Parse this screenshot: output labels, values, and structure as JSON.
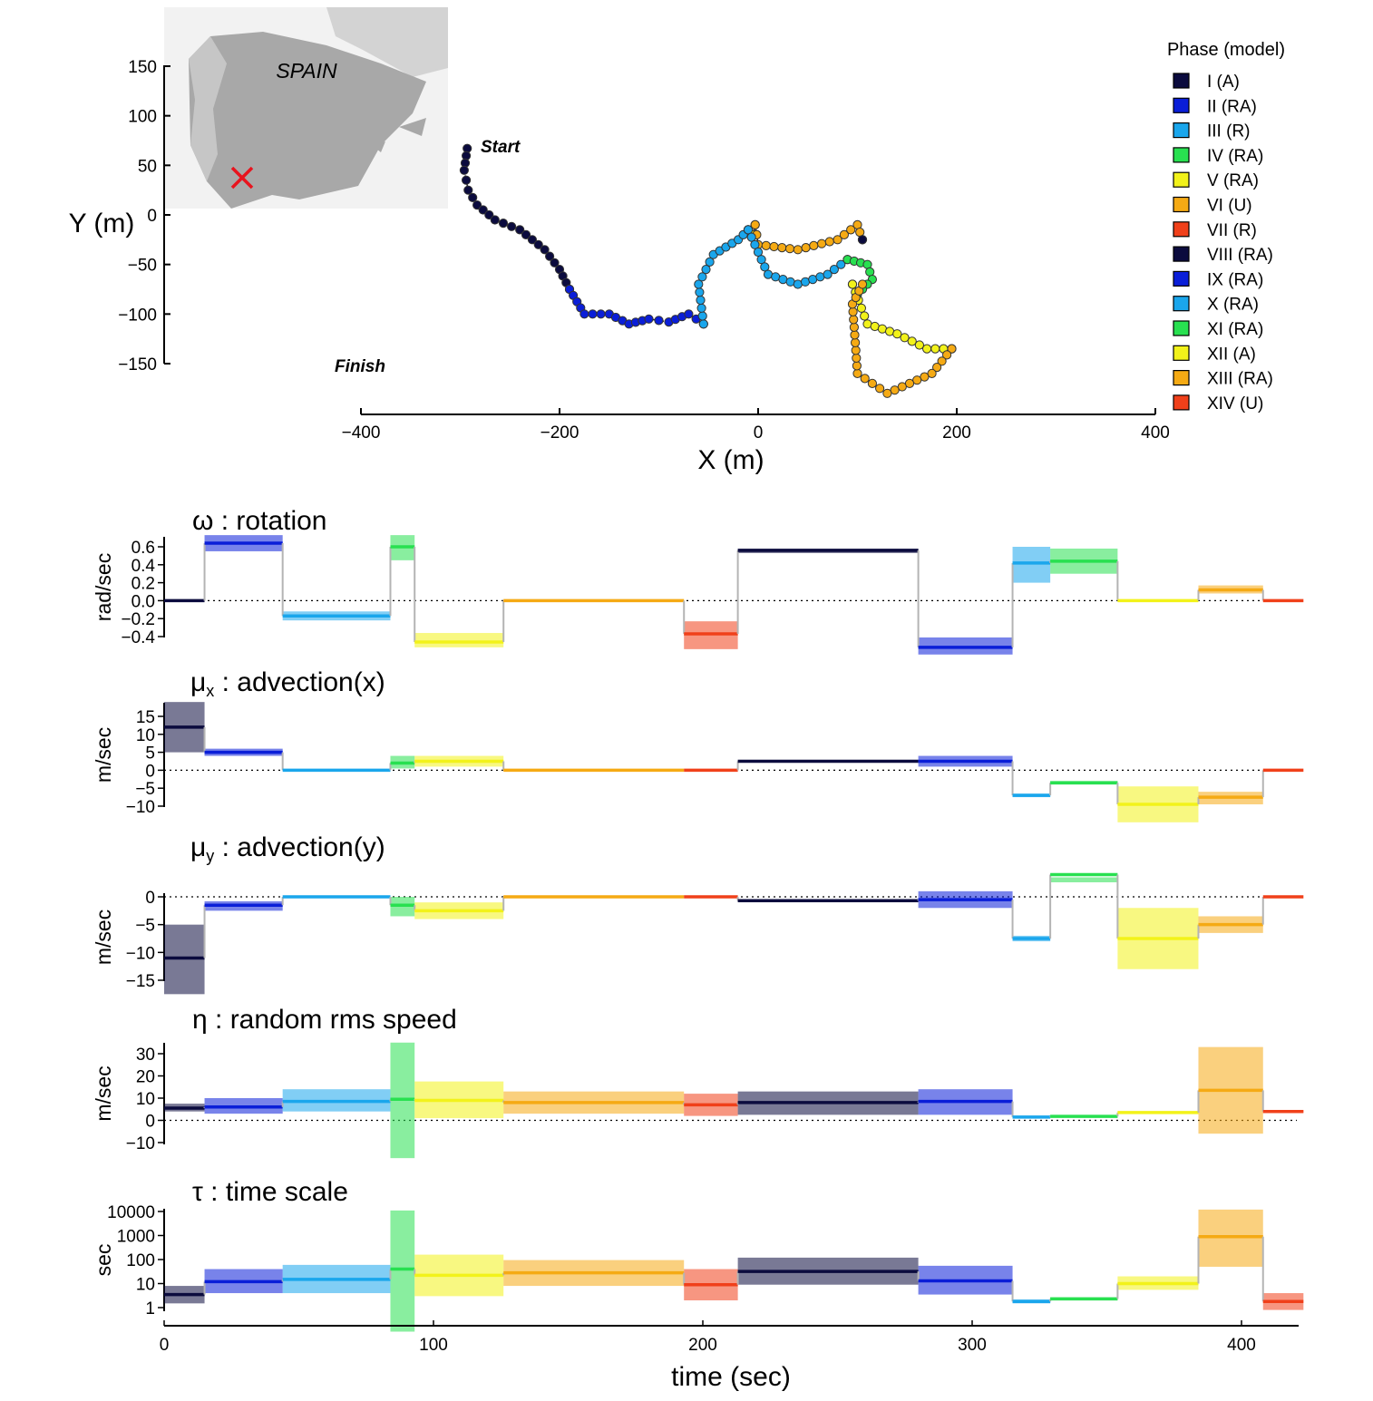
{
  "colors": {
    "I": "#0b0b3e",
    "II": "#0a1ed8",
    "III": "#1aa6ec",
    "IV": "#28e050",
    "V": "#f2f21a",
    "VI": "#f5aa14",
    "VII": "#f0401a",
    "VIII": "#0b0b3e",
    "IX": "#0a1ed8",
    "X": "#1aa6ec",
    "XI": "#28e050",
    "XII": "#f2f21a",
    "XIII": "#f5aa14",
    "XIV": "#f0401a"
  },
  "chart_data": [
    {
      "type": "scatter",
      "xlabel": "X (m)",
      "ylabel": "Y (m)",
      "xlim": [
        -400,
        400
      ],
      "ylim": [
        -150,
        150
      ],
      "xticks": [
        "−400",
        "−200",
        "0",
        "200",
        "400"
      ],
      "yticks": [
        "150",
        "100",
        "50",
        "0",
        "−50",
        "−100",
        "−150"
      ],
      "annotations": [
        "Start",
        "Finish"
      ],
      "inset_label": "SPAIN",
      "legend_title": "Phase (model)",
      "legend": [
        "I (A)",
        "II (RA)",
        "III (R)",
        "IV (RA)",
        "V (RA)",
        "VI (U)",
        "VII (R)",
        "VIII (RA)",
        "IX (RA)",
        "X (RA)",
        "XI (RA)",
        "XII (A)",
        "XIII (RA)",
        "XIV (U)"
      ],
      "legend_keys": [
        "I",
        "II",
        "III",
        "IV",
        "V",
        "VI",
        "VII",
        "VIII",
        "IX",
        "X",
        "XI",
        "XII",
        "XIII",
        "XIV"
      ],
      "segments": [
        {
          "phase": "I",
          "points": [
            [
              -293,
              67
            ],
            [
              -296,
              45
            ],
            [
              -292,
              25
            ],
            [
              -283,
              10
            ],
            [
              -265,
              -5
            ],
            [
              -240,
              -15
            ],
            [
              -215,
              -35
            ],
            [
              -200,
              -55
            ],
            [
              -190,
              -75
            ]
          ]
        },
        {
          "phase": "II",
          "points": [
            [
              -190,
              -75
            ],
            [
              -175,
              -100
            ],
            [
              -150,
              -100
            ],
            [
              -130,
              -110
            ],
            [
              -110,
              -105
            ],
            [
              -90,
              -108
            ],
            [
              -70,
              -100
            ],
            [
              -55,
              -110
            ]
          ]
        },
        {
          "phase": "III",
          "points": [
            [
              -55,
              -110
            ],
            [
              -60,
              -70
            ],
            [
              -45,
              -40
            ],
            [
              -20,
              -25
            ],
            [
              -10,
              -15
            ]
          ]
        },
        {
          "phase": "IV",
          "points": [
            [
              -10,
              -15
            ],
            [
              -5,
              -20
            ]
          ]
        },
        {
          "phase": "V",
          "points": [
            [
              -5,
              -20
            ],
            [
              -3,
              -10
            ]
          ]
        },
        {
          "phase": "VI",
          "points": [
            [
              -3,
              -10
            ],
            [
              0,
              -30
            ],
            [
              40,
              -35
            ],
            [
              80,
              -25
            ],
            [
              100,
              -10
            ],
            [
              105,
              -25
            ]
          ]
        },
        {
          "phase": "VII",
          "points": [
            [
              105,
              -25
            ]
          ]
        },
        {
          "phase": "VIII",
          "points": [
            [
              105,
              -25
            ]
          ]
        },
        {
          "phase": "X",
          "points": [
            [
              -10,
              -15
            ],
            [
              10,
              -60
            ],
            [
              40,
              -70
            ],
            [
              70,
              -60
            ],
            [
              90,
              -45
            ]
          ]
        },
        {
          "phase": "XI",
          "points": [
            [
              90,
              -45
            ],
            [
              110,
              -50
            ],
            [
              115,
              -65
            ],
            [
              100,
              -80
            ],
            [
              95,
              -70
            ]
          ]
        },
        {
          "phase": "XII",
          "points": [
            [
              95,
              -70
            ],
            [
              110,
              -110
            ],
            [
              140,
              -120
            ],
            [
              170,
              -135
            ],
            [
              195,
              -135
            ]
          ]
        },
        {
          "phase": "XIII",
          "points": [
            [
              195,
              -135
            ],
            [
              175,
              -160
            ],
            [
              130,
              -180
            ],
            [
              100,
              -160
            ],
            [
              95,
              -90
            ],
            [
              105,
              -70
            ]
          ]
        }
      ]
    },
    {
      "type": "step",
      "title": "ω :  rotation",
      "ylabel": "rad/sec",
      "ylim": [
        -0.4,
        0.6
      ],
      "yticks": [
        "0.6",
        "0.4",
        "0.2",
        "0.0",
        "−0.2",
        "−0.4"
      ],
      "segments": [
        {
          "phase": "I",
          "t0": 0,
          "t1": 15,
          "value": 0.0,
          "lo": 0.0,
          "hi": 0.0
        },
        {
          "phase": "II",
          "t0": 15,
          "t1": 44,
          "value": 0.64,
          "lo": 0.55,
          "hi": 0.73
        },
        {
          "phase": "III",
          "t0": 44,
          "t1": 84,
          "value": -0.17,
          "lo": -0.22,
          "hi": -0.12
        },
        {
          "phase": "IV",
          "t0": 84,
          "t1": 93,
          "value": 0.6,
          "lo": 0.45,
          "hi": 0.73
        },
        {
          "phase": "V",
          "t0": 93,
          "t1": 126,
          "value": -0.46,
          "lo": -0.52,
          "hi": -0.36
        },
        {
          "phase": "VI",
          "t0": 126,
          "t1": 193,
          "value": 0.0,
          "lo": 0.0,
          "hi": 0.0
        },
        {
          "phase": "VII",
          "t0": 193,
          "t1": 213,
          "value": -0.37,
          "lo": -0.54,
          "hi": -0.23
        },
        {
          "phase": "VIII",
          "t0": 213,
          "t1": 280,
          "value": 0.56,
          "lo": 0.53,
          "hi": 0.58
        },
        {
          "phase": "IX",
          "t0": 280,
          "t1": 315,
          "value": -0.52,
          "lo": -0.6,
          "hi": -0.41
        },
        {
          "phase": "X",
          "t0": 315,
          "t1": 329,
          "value": 0.42,
          "lo": 0.2,
          "hi": 0.6
        },
        {
          "phase": "XI",
          "t0": 329,
          "t1": 354,
          "value": 0.44,
          "lo": 0.3,
          "hi": 0.58
        },
        {
          "phase": "XII",
          "t0": 354,
          "t1": 384,
          "value": 0.0,
          "lo": 0.0,
          "hi": 0.0
        },
        {
          "phase": "XIII",
          "t0": 384,
          "t1": 408,
          "value": 0.12,
          "lo": 0.08,
          "hi": 0.17
        },
        {
          "phase": "XIV",
          "t0": 408,
          "t1": 423,
          "value": 0.0,
          "lo": 0.0,
          "hi": 0.0
        }
      ]
    },
    {
      "type": "step",
      "title_main": "μ",
      "title_sub": "x",
      "title_rest": " : advection(x)",
      "ylabel": "m/sec",
      "ylim": [
        -10,
        15
      ],
      "yticks": [
        "15",
        "10",
        "5",
        "0",
        "−5",
        "−10"
      ],
      "segments": [
        {
          "phase": "I",
          "t0": 0,
          "t1": 15,
          "value": 12,
          "lo": 5,
          "hi": 19
        },
        {
          "phase": "II",
          "t0": 15,
          "t1": 44,
          "value": 5,
          "lo": 4,
          "hi": 6
        },
        {
          "phase": "III",
          "t0": 44,
          "t1": 84,
          "value": 0,
          "lo": 0,
          "hi": 0
        },
        {
          "phase": "IV",
          "t0": 84,
          "t1": 93,
          "value": 2,
          "lo": 0.5,
          "hi": 4
        },
        {
          "phase": "V",
          "t0": 93,
          "t1": 126,
          "value": 2.5,
          "lo": 1,
          "hi": 4
        },
        {
          "phase": "VI",
          "t0": 126,
          "t1": 193,
          "value": 0,
          "lo": 0,
          "hi": 0
        },
        {
          "phase": "VII",
          "t0": 193,
          "t1": 213,
          "value": 0,
          "lo": 0,
          "hi": 0
        },
        {
          "phase": "VIII",
          "t0": 213,
          "t1": 280,
          "value": 2.5,
          "lo": 2.3,
          "hi": 2.7
        },
        {
          "phase": "IX",
          "t0": 280,
          "t1": 315,
          "value": 2.5,
          "lo": 1,
          "hi": 4
        },
        {
          "phase": "X",
          "t0": 315,
          "t1": 329,
          "value": -7,
          "lo": -7.5,
          "hi": -6.5
        },
        {
          "phase": "XI",
          "t0": 329,
          "t1": 354,
          "value": -3.5,
          "lo": -4,
          "hi": -3
        },
        {
          "phase": "XII",
          "t0": 354,
          "t1": 384,
          "value": -9.5,
          "lo": -14.5,
          "hi": -4.5
        },
        {
          "phase": "XIII",
          "t0": 384,
          "t1": 408,
          "value": -7.5,
          "lo": -9.5,
          "hi": -6
        },
        {
          "phase": "XIV",
          "t0": 408,
          "t1": 423,
          "value": 0,
          "lo": 0,
          "hi": 0
        }
      ]
    },
    {
      "type": "step",
      "title_main": "μ",
      "title_sub": "y",
      "title_rest": " : advection(y)",
      "ylabel": "m/sec",
      "ylim": [
        -15,
        0
      ],
      "yticks": [
        "0",
        "−5",
        "−10",
        "−15"
      ],
      "segments": [
        {
          "phase": "I",
          "t0": 0,
          "t1": 15,
          "value": -11,
          "lo": -17.5,
          "hi": -5
        },
        {
          "phase": "II",
          "t0": 15,
          "t1": 44,
          "value": -1.5,
          "lo": -2.5,
          "hi": -0.8
        },
        {
          "phase": "III",
          "t0": 44,
          "t1": 84,
          "value": 0,
          "lo": 0,
          "hi": 0
        },
        {
          "phase": "IV",
          "t0": 84,
          "t1": 93,
          "value": -1.5,
          "lo": -3.5,
          "hi": 0
        },
        {
          "phase": "V",
          "t0": 93,
          "t1": 126,
          "value": -2.5,
          "lo": -4,
          "hi": -1
        },
        {
          "phase": "VI",
          "t0": 126,
          "t1": 193,
          "value": 0,
          "lo": 0,
          "hi": 0
        },
        {
          "phase": "VII",
          "t0": 193,
          "t1": 213,
          "value": 0,
          "lo": 0,
          "hi": 0
        },
        {
          "phase": "VIII",
          "t0": 213,
          "t1": 280,
          "value": -0.7,
          "lo": -0.9,
          "hi": -0.5
        },
        {
          "phase": "IX",
          "t0": 280,
          "t1": 315,
          "value": -0.5,
          "lo": -2,
          "hi": 1
        },
        {
          "phase": "X",
          "t0": 315,
          "t1": 329,
          "value": -7.5,
          "lo": -8,
          "hi": -7
        },
        {
          "phase": "XI",
          "t0": 329,
          "t1": 354,
          "value": 4,
          "lo": 3.5,
          "hi": 4.5
        },
        {
          "phase": "XII",
          "t0": 354,
          "t1": 384,
          "value": -7.5,
          "lo": -13,
          "hi": -2
        },
        {
          "phase": "XIII",
          "t0": 384,
          "t1": 408,
          "value": -5,
          "lo": -6.5,
          "hi": -3.5
        },
        {
          "phase": "XIV",
          "t0": 408,
          "t1": 423,
          "value": 0,
          "lo": 0,
          "hi": 0
        }
      ]
    },
    {
      "type": "step",
      "title": "η : random rms speed",
      "ylabel": "m/sec",
      "ylim": [
        -10,
        30
      ],
      "yticks": [
        "30",
        "20",
        "10",
        "0",
        "−10"
      ],
      "segments": [
        {
          "phase": "I",
          "t0": 0,
          "t1": 15,
          "value": 5.5,
          "lo": 4,
          "hi": 7.5
        },
        {
          "phase": "II",
          "t0": 15,
          "t1": 44,
          "value": 6,
          "lo": 3,
          "hi": 10
        },
        {
          "phase": "III",
          "t0": 44,
          "t1": 84,
          "value": 8.5,
          "lo": 4,
          "hi": 14
        },
        {
          "phase": "IV",
          "t0": 84,
          "t1": 93,
          "value": 9.5,
          "lo": -17,
          "hi": 35
        },
        {
          "phase": "V",
          "t0": 93,
          "t1": 126,
          "value": 9,
          "lo": 1,
          "hi": 17.5
        },
        {
          "phase": "VI",
          "t0": 126,
          "t1": 193,
          "value": 8,
          "lo": 3,
          "hi": 13
        },
        {
          "phase": "VII",
          "t0": 193,
          "t1": 213,
          "value": 7,
          "lo": 2,
          "hi": 12
        },
        {
          "phase": "VIII",
          "t0": 213,
          "t1": 280,
          "value": 8,
          "lo": 2.5,
          "hi": 13
        },
        {
          "phase": "IX",
          "t0": 280,
          "t1": 315,
          "value": 8.5,
          "lo": 2.5,
          "hi": 14
        },
        {
          "phase": "X",
          "t0": 315,
          "t1": 329,
          "value": 1.5,
          "lo": 1,
          "hi": 2
        },
        {
          "phase": "XI",
          "t0": 329,
          "t1": 354,
          "value": 1.8,
          "lo": 1.3,
          "hi": 2.3
        },
        {
          "phase": "XII",
          "t0": 354,
          "t1": 384,
          "value": 3.5,
          "lo": 3,
          "hi": 4
        },
        {
          "phase": "XIII",
          "t0": 384,
          "t1": 408,
          "value": 13.5,
          "lo": -6,
          "hi": 33
        },
        {
          "phase": "XIV",
          "t0": 408,
          "t1": 423,
          "value": 4,
          "lo": 3.5,
          "hi": 4.5
        }
      ]
    },
    {
      "type": "step",
      "title": "τ : time scale",
      "ylabel": "sec",
      "yscale": "log",
      "ylim": [
        1,
        10000
      ],
      "yticks": [
        "10000",
        "1000",
        "100",
        "10",
        "1"
      ],
      "segments": [
        {
          "phase": "I",
          "t0": 0,
          "t1": 15,
          "value": 3.5,
          "lo": 1.5,
          "hi": 8
        },
        {
          "phase": "II",
          "t0": 15,
          "t1": 44,
          "value": 12,
          "lo": 4,
          "hi": 40
        },
        {
          "phase": "III",
          "t0": 44,
          "t1": 84,
          "value": 15,
          "lo": 4,
          "hi": 60
        },
        {
          "phase": "IV",
          "t0": 84,
          "t1": 93,
          "value": 40,
          "lo": 0.1,
          "hi": 11000
        },
        {
          "phase": "V",
          "t0": 93,
          "t1": 126,
          "value": 22,
          "lo": 3,
          "hi": 160
        },
        {
          "phase": "VI",
          "t0": 126,
          "t1": 193,
          "value": 28,
          "lo": 8,
          "hi": 95
        },
        {
          "phase": "VII",
          "t0": 193,
          "t1": 213,
          "value": 9,
          "lo": 2,
          "hi": 40
        },
        {
          "phase": "VIII",
          "t0": 213,
          "t1": 280,
          "value": 32,
          "lo": 9,
          "hi": 120
        },
        {
          "phase": "IX",
          "t0": 280,
          "t1": 315,
          "value": 13,
          "lo": 3.5,
          "hi": 55
        },
        {
          "phase": "X",
          "t0": 315,
          "t1": 329,
          "value": 1.8,
          "lo": 1.5,
          "hi": 2.2
        },
        {
          "phase": "XI",
          "t0": 329,
          "t1": 354,
          "value": 2.3,
          "lo": 2,
          "hi": 2.7
        },
        {
          "phase": "XII",
          "t0": 354,
          "t1": 384,
          "value": 10,
          "lo": 5.5,
          "hi": 20
        },
        {
          "phase": "XIII",
          "t0": 384,
          "t1": 408,
          "value": 900,
          "lo": 50,
          "hi": 12000
        },
        {
          "phase": "XIV",
          "t0": 408,
          "t1": 423,
          "value": 1.8,
          "lo": 0.8,
          "hi": 4
        }
      ]
    },
    {
      "type": "axis",
      "xlabel": "time (sec)",
      "xlim": [
        0,
        423
      ],
      "xticks": [
        "0",
        "100",
        "200",
        "300",
        "400"
      ]
    }
  ]
}
